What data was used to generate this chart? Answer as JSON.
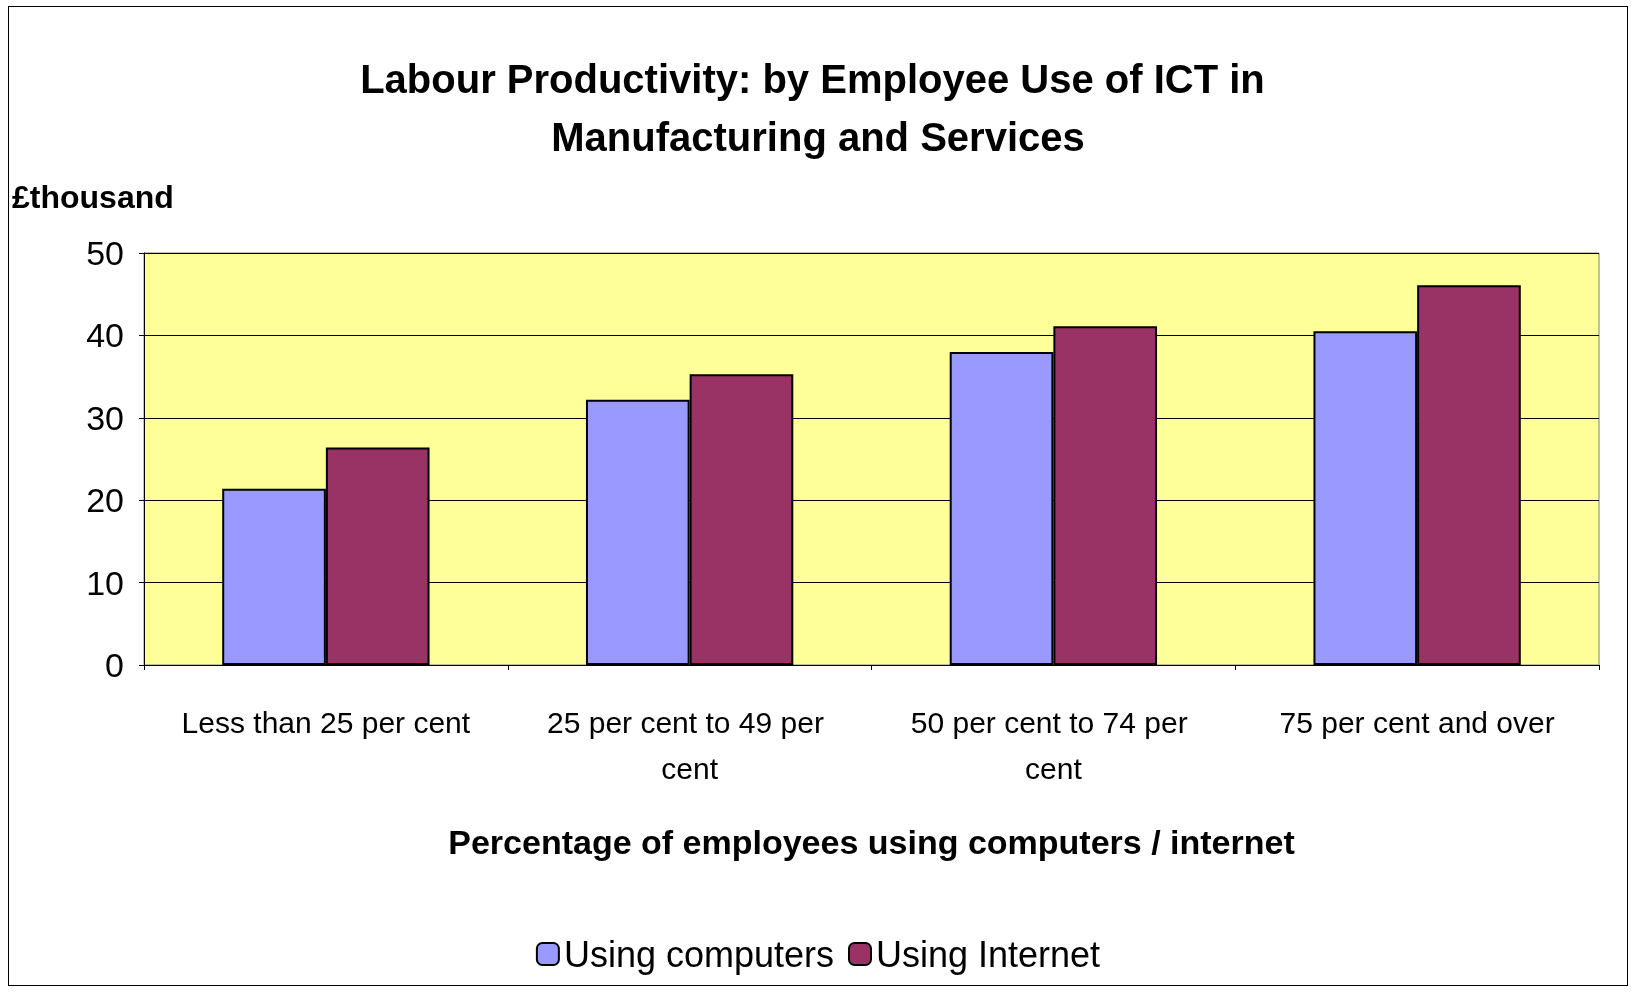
{
  "chart_data": {
    "type": "bar",
    "title": "Labour Productivity: by Employee Use of ICT in Manufacturing and Services",
    "ylabel": "£thousand",
    "xlabel": "Percentage of employees using computers / internet",
    "categories": [
      "Less than 25 per cent",
      "25 per cent to 49 per cent",
      "50 per cent to 74 per cent",
      "75 per cent and over"
    ],
    "series": [
      {
        "name": "Using computers",
        "color": "#9999ff",
        "values": [
          21.4,
          32.2,
          38.0,
          40.5
        ]
      },
      {
        "name": "Using Internet",
        "color": "#993366",
        "values": [
          26.4,
          35.3,
          41.1,
          46.1
        ]
      }
    ],
    "ylim": [
      0,
      50
    ],
    "yticks": [
      0,
      10,
      20,
      30,
      40,
      50
    ],
    "grid": "y",
    "legend": "bottom"
  }
}
